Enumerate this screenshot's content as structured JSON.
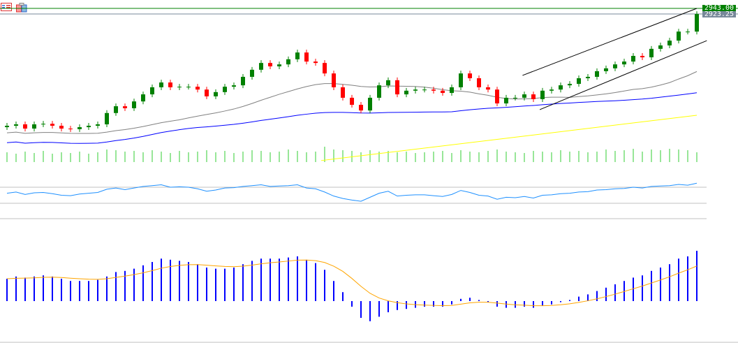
{
  "chart_data": [
    {
      "type": "candlestick",
      "panel": "price",
      "close": [
        2528,
        2533,
        2518,
        2533,
        2535,
        2528,
        2518,
        2516,
        2523,
        2528,
        2533,
        2573,
        2597,
        2590,
        2614,
        2639,
        2664,
        2681,
        2664,
        2666,
        2666,
        2656,
        2632,
        2647,
        2666,
        2671,
        2701,
        2726,
        2750,
        2738,
        2745,
        2763,
        2787,
        2755,
        2750,
        2713,
        2664,
        2627,
        2602,
        2582,
        2627,
        2671,
        2689,
        2639,
        2652,
        2656,
        2656,
        2652,
        2644,
        2664,
        2713,
        2696,
        2664,
        2656,
        2607,
        2627,
        2627,
        2639,
        2622,
        2652,
        2656,
        2671,
        2676,
        2696,
        2701,
        2721,
        2731,
        2745,
        2755,
        2775,
        2770,
        2800,
        2812,
        2829,
        2861,
        2861,
        2923
      ],
      "price_labels": [
        {
          "text": "2943.00",
          "color": "#008000"
        },
        {
          "text": "2923.25",
          "color": "#778899"
        }
      ],
      "horizontal_lines": [
        2943.0,
        2923.25
      ],
      "trendlines": [
        {
          "from": [
            56.8,
            2706
          ],
          "to": [
            76,
            2943
          ]
        },
        {
          "from": [
            58.7,
            2585
          ],
          "to": [
            77.1,
            2829
          ]
        }
      ],
      "moving_averages": [
        {
          "color": "#808080",
          "period": 20
        },
        {
          "color": "#0000ff",
          "period": 50
        },
        {
          "color": "#ffff00",
          "from": [
            34,
            2405
          ],
          "to": [
            76,
            2565
          ]
        }
      ],
      "colors": {
        "up": "#008000",
        "down": "#ff0000"
      }
    },
    {
      "type": "bar",
      "panel": "volume",
      "color": "#32cd32",
      "values": [
        14,
        12,
        15,
        13,
        16,
        12,
        14,
        13,
        15,
        12,
        14,
        18,
        17,
        15,
        16,
        14,
        17,
        15,
        13,
        16,
        14,
        15,
        17,
        14,
        16,
        13,
        15,
        17,
        16,
        14,
        15,
        18,
        16,
        14,
        15,
        22,
        18,
        17,
        16,
        14,
        17,
        15,
        16,
        14,
        15,
        13,
        14,
        15,
        16,
        13,
        17,
        15,
        14,
        16,
        18,
        15,
        14,
        13,
        16,
        15,
        14,
        17,
        15,
        16,
        14,
        15,
        18,
        16,
        17,
        19,
        15,
        18,
        17,
        19,
        18,
        17,
        14
      ]
    },
    {
      "type": "line",
      "panel": "rsi",
      "color": "#1e90ff",
      "levels": [
        70,
        30
      ],
      "values": [
        55,
        58,
        52,
        56,
        57,
        54,
        50,
        49,
        53,
        55,
        57,
        65,
        68,
        64,
        68,
        72,
        74,
        76,
        70,
        71,
        70,
        66,
        60,
        63,
        68,
        69,
        72,
        74,
        76,
        72,
        73,
        74,
        76,
        68,
        66,
        58,
        48,
        42,
        38,
        35,
        45,
        55,
        60,
        48,
        50,
        51,
        51,
        49,
        47,
        52,
        62,
        57,
        50,
        48,
        40,
        45,
        44,
        47,
        43,
        50,
        51,
        54,
        55,
        58,
        59,
        63,
        64,
        66,
        67,
        70,
        68,
        72,
        73,
        74,
        77,
        75,
        80
      ]
    },
    {
      "type": "bar",
      "panel": "macd",
      "color": "#0000ff",
      "signal_color": "#ffa500",
      "values": [
        20,
        22,
        21,
        22,
        23,
        22,
        20,
        18,
        18,
        18,
        19,
        22,
        26,
        27,
        29,
        32,
        35,
        38,
        37,
        36,
        35,
        33,
        30,
        29,
        29,
        30,
        33,
        36,
        38,
        38,
        38,
        39,
        40,
        37,
        34,
        28,
        18,
        8,
        -5,
        -15,
        -18,
        -14,
        -10,
        -8,
        -7,
        -6,
        -5,
        -5,
        -5,
        -3,
        2,
        3,
        1,
        -1,
        -5,
        -6,
        -6,
        -5,
        -6,
        -4,
        -3,
        -1,
        1,
        4,
        6,
        9,
        12,
        15,
        18,
        21,
        23,
        27,
        30,
        33,
        38,
        40,
        45
      ]
    }
  ],
  "icons": [
    "indicator-list-icon",
    "templates-icon"
  ]
}
